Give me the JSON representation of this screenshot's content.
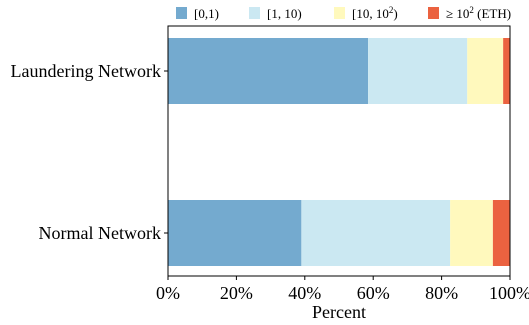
{
  "chart_data": {
    "type": "bar",
    "orientation": "horizontal",
    "stacked": true,
    "categories": [
      "Laundering Network",
      "Normal Network"
    ],
    "series": [
      {
        "name": "[0,1)",
        "color": "#74aacf",
        "values": [
          58.5,
          39
        ]
      },
      {
        "name": "[1, 10)",
        "color": "#cbe8f2",
        "values": [
          29,
          43.5
        ]
      },
      {
        "name": "[10, 10²)",
        "color": "#fff9bd",
        "values": [
          10.5,
          12.5
        ]
      },
      {
        "name": "≥ 10² (ETH)",
        "color": "#eb6240",
        "values": [
          2,
          5
        ]
      }
    ],
    "legend_labels": [
      {
        "base": "[0,1)",
        "sup": ""
      },
      {
        "base": "[1, 10)",
        "sup": ""
      },
      {
        "base": "[10, 10",
        "sup": "2",
        "tail": ")"
      },
      {
        "base": "≥ 10",
        "sup": "2",
        "tail": " (ETH)"
      }
    ],
    "xlabel": "Percent",
    "xlim": [
      0,
      100
    ],
    "xticks": [
      0,
      20,
      40,
      60,
      80,
      100
    ],
    "xtick_labels": [
      "0%",
      "20%",
      "40%",
      "60%",
      "80%",
      "100%"
    ],
    "legend_position": "top",
    "grid": false
  }
}
